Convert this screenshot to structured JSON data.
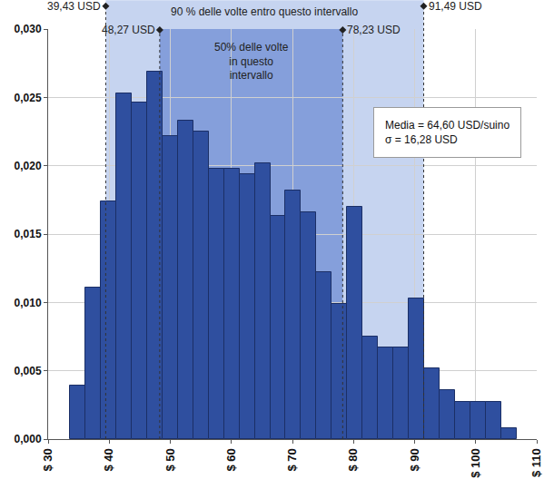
{
  "chart_data": {
    "type": "histogram",
    "bins": [
      33.6,
      36.12,
      38.64,
      41.16,
      43.68,
      46.2,
      48.72,
      51.24,
      53.76,
      56.28,
      58.8,
      61.32,
      63.84,
      66.36,
      68.88,
      71.4,
      73.92,
      76.44,
      78.96,
      81.48,
      84,
      86.52,
      89.04,
      91.56,
      94.08,
      96.6,
      99.12,
      101.64,
      104.16,
      106.68
    ],
    "values": [
      0.0039,
      0.0111,
      0.0174,
      0.0253,
      0.0246,
      0.0269,
      0.0222,
      0.0233,
      0.0225,
      0.0198,
      0.0198,
      0.0194,
      0.0202,
      0.0163,
      0.0182,
      0.0166,
      0.0122,
      0.0099,
      0.017,
      0.0075,
      0.0067,
      0.0067,
      0.0103,
      0.0052,
      0.0036,
      0.0027,
      0.0027,
      0.0027,
      0.0008
    ],
    "color": "#2f4f9f",
    "xlim": [
      30,
      110
    ],
    "xticks": [
      {
        "value": 30,
        "label": "$ 30"
      },
      {
        "value": 40,
        "label": "$ 40"
      },
      {
        "value": 50,
        "label": "$ 50"
      },
      {
        "value": 60,
        "label": "$ 60"
      },
      {
        "value": 70,
        "label": "$ 70"
      },
      {
        "value": 80,
        "label": "$ 80"
      },
      {
        "value": 90,
        "label": "$ 90"
      },
      {
        "value": 100,
        "label": "$ 100"
      },
      {
        "value": 110,
        "label": "$ 110"
      }
    ],
    "ylim": [
      0,
      0.03
    ],
    "yticks": [
      {
        "value": 0,
        "label": "0,000"
      },
      {
        "value": 0.005,
        "label": "0,005"
      },
      {
        "value": 0.01,
        "label": "0,010"
      },
      {
        "value": 0.015,
        "label": "0,015"
      },
      {
        "value": 0.02,
        "label": "0,020"
      },
      {
        "value": 0.025,
        "label": "0,025"
      },
      {
        "value": 0.03,
        "label": "0,030"
      }
    ],
    "grid": true,
    "bands": [
      {
        "from": 39.43,
        "to": 91.49,
        "from_label": "39,43 USD",
        "to_label": "91,49 USD",
        "text": [
          "90 % delle volte entro questo intervallo"
        ],
        "color": "#c6d4f0"
      },
      {
        "from": 48.27,
        "to": 78.23,
        "from_label": "48,27 USD",
        "to_label": "78,23 USD",
        "text": [
          "50% delle volte",
          "in questo",
          "intervallo"
        ],
        "color": "#859fdb"
      }
    ],
    "annotations": [
      "Media = 64,60 USD/suino",
      "σ = 16,28 USD"
    ]
  }
}
